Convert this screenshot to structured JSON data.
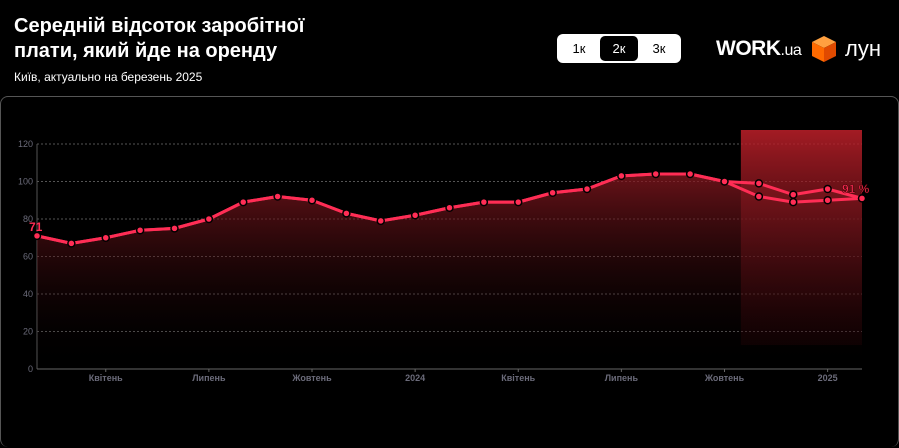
{
  "header": {
    "title": "Середній відсоток заробітної плати, який йде на оренду",
    "subtitle": "Київ, актуально на березень 2025",
    "toggle": [
      {
        "label": "1к",
        "active": false
      },
      {
        "label": "2к",
        "active": true
      },
      {
        "label": "3к",
        "active": false
      }
    ],
    "logos": {
      "work": "WORK",
      "work_suffix": ".ua",
      "lun": "ЛУН"
    }
  },
  "colors": {
    "line": "#ff2d55",
    "highlight": "#b01c24",
    "fill": "#7a1418"
  },
  "chart_data": {
    "type": "line",
    "title": "",
    "xlabel": "",
    "ylabel": "",
    "ylim": [
      0,
      120
    ],
    "yticks": [
      0,
      20,
      40,
      60,
      80,
      100,
      120
    ],
    "grid": true,
    "categories": [
      "2023-02",
      "2023-03",
      "2023-04",
      "2023-05",
      "2023-06",
      "2023-07",
      "2023-08",
      "2023-09",
      "2023-10",
      "2023-11",
      "2023-12",
      "2024-01",
      "2024-02",
      "2024-03",
      "2024-04",
      "2024-05",
      "2024-06",
      "2024-07",
      "2024-08",
      "2024-09",
      "2024-10",
      "2024-11",
      "2024-12",
      "2025-01",
      "2025-02"
    ],
    "xtick_labels": [
      {
        "index": 2,
        "label": "Квітень"
      },
      {
        "index": 5,
        "label": "Липень"
      },
      {
        "index": 8,
        "label": "Жовтень"
      },
      {
        "index": 11,
        "label": "2024"
      },
      {
        "index": 14,
        "label": "Квітень"
      },
      {
        "index": 17,
        "label": "Липень"
      },
      {
        "index": 20,
        "label": "Жовтень"
      },
      {
        "index": 23,
        "label": "2025"
      }
    ],
    "series": [
      {
        "values": [
          71,
          67,
          70,
          74,
          75,
          80,
          89,
          92,
          90,
          83,
          79,
          82,
          86,
          89,
          89,
          94,
          96,
          103,
          104,
          104,
          100,
          99,
          93,
          96,
          91
        ]
      },
      {
        "values": [
          71,
          67,
          70,
          74,
          75,
          80,
          89,
          92,
          90,
          83,
          79,
          82,
          86,
          89,
          89,
          94,
          96,
          103,
          104,
          104,
          100,
          92,
          89,
          90,
          91
        ]
      }
    ],
    "highlight_range": [
      "2024-11",
      "2025-02"
    ],
    "annotations": {
      "start_label": "71",
      "end_label": "91 %"
    }
  }
}
